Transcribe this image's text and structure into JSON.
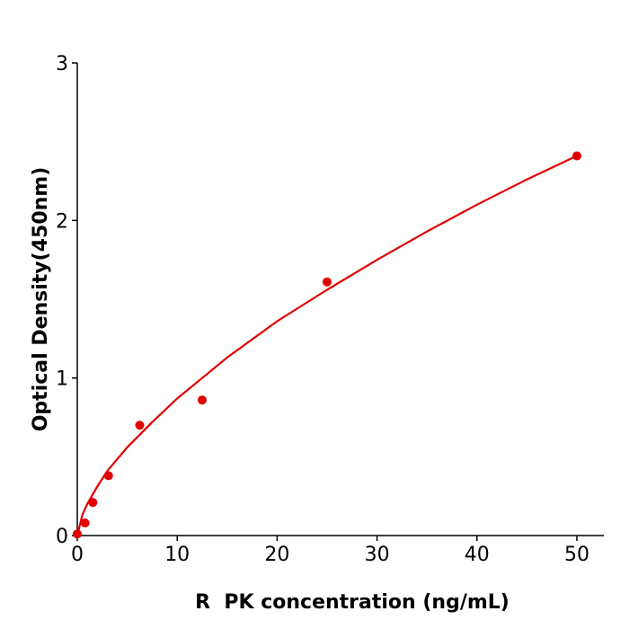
{
  "chart_data": {
    "type": "scatter",
    "title": "",
    "xlabel": "R  PK concentration (ng/mL)",
    "ylabel": "Optical Density(450nm)",
    "xlim": [
      0,
      52.7
    ],
    "ylim": [
      0,
      3
    ],
    "xticks": [
      "0",
      "10",
      "20",
      "30",
      "40",
      "50"
    ],
    "yticks": [
      "0",
      "1",
      "2",
      "3"
    ],
    "grid": false,
    "color": "#e00000",
    "series": [
      {
        "x": [
          0,
          0.78,
          1.56,
          3.125,
          6.25,
          12.5,
          25,
          50
        ],
        "y": [
          0.01,
          0.08,
          0.21,
          0.38,
          0.7,
          0.86,
          1.61,
          2.41
        ]
      }
    ],
    "fit_curve": {
      "x": [
        0,
        0.5,
        1,
        2,
        3,
        5,
        7.5,
        10,
        12.5,
        15,
        20,
        25,
        30,
        35,
        40,
        45,
        50
      ],
      "y": [
        0,
        0.13,
        0.2,
        0.31,
        0.41,
        0.56,
        0.72,
        0.87,
        1.0,
        1.13,
        1.36,
        1.56,
        1.75,
        1.93,
        2.1,
        2.26,
        2.41
      ]
    }
  }
}
